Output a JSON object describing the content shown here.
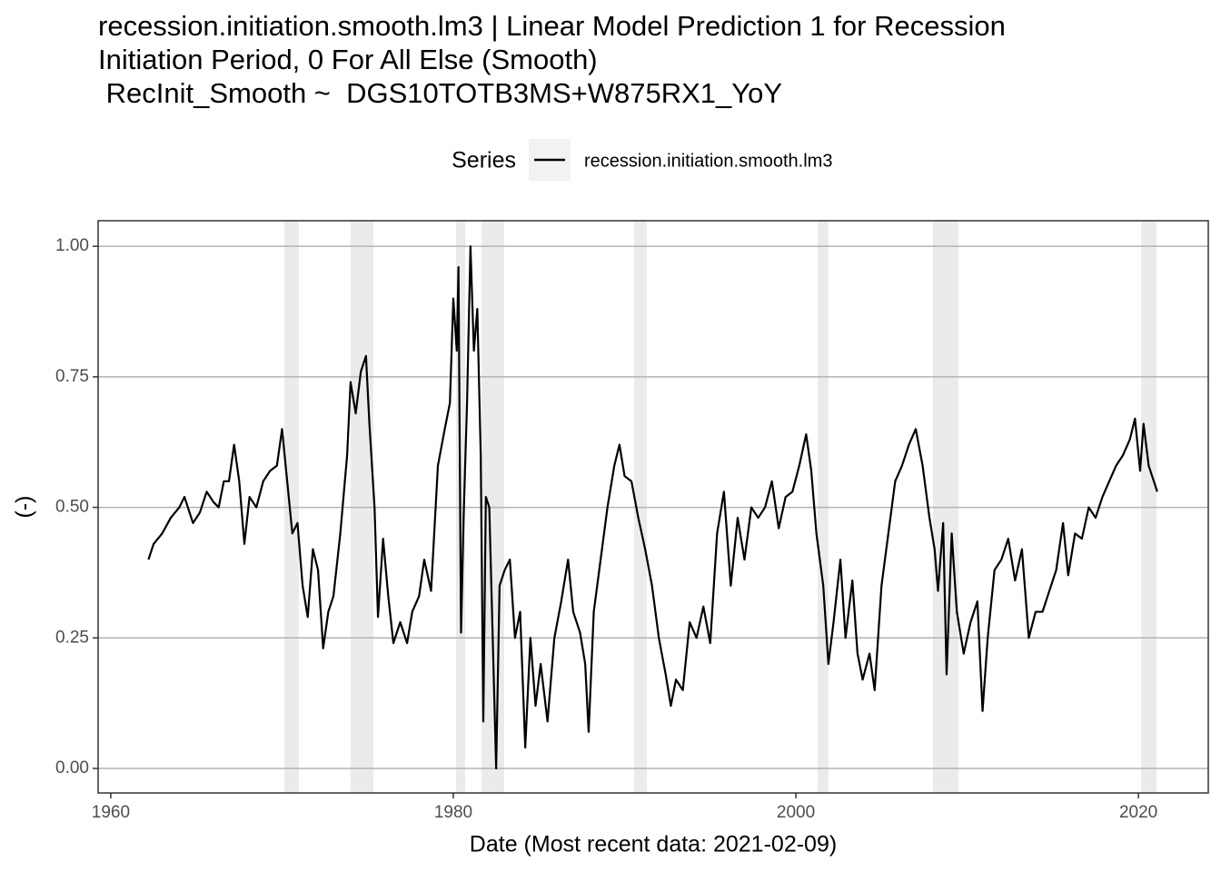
{
  "chart_data": {
    "type": "line",
    "title": "recession.initiation.smooth.lm3 | Linear Model Prediction 1 for Recession Initiation Period, 0 For All Else (Smooth)",
    "subtitle": " RecInit_Smooth ~  DGS10TOTB3MS+W875RX1_YoY",
    "legend_title": "Series",
    "legend_position": "top",
    "x_label": "Date (Most recent data: 2021-02-09)",
    "y_label": "(-)",
    "xlim": [
      1959.26,
      2024.08
    ],
    "xticks": [
      1960,
      1980,
      2000,
      2020
    ],
    "ylim": [
      -0.047,
      1.049
    ],
    "yticks": [
      {
        "value": 0,
        "label": "0.00"
      },
      0.25,
      {
        "value": 0.5,
        "label": "0.50"
      },
      0.75,
      {
        "value": 1,
        "label": "1.00"
      }
    ],
    "grid": true,
    "shade_color": "#ebebeb",
    "shaded_periods": [
      [
        1970.13,
        1970.98
      ],
      [
        1974.0,
        1975.33
      ],
      [
        1980.16,
        1980.69
      ],
      [
        1981.64,
        1982.97
      ],
      [
        1990.56,
        1991.3
      ],
      [
        2001.27,
        2001.9
      ],
      [
        2008.0,
        2009.5
      ],
      [
        2020.16,
        2021.06
      ]
    ],
    "series": [
      {
        "name": "recession.initiation.smooth.lm3",
        "color": "#000000",
        "x": [
          1962.2,
          1962.5,
          1963,
          1963.5,
          1964,
          1964.3,
          1964.8,
          1965.2,
          1965.6,
          1966,
          1966.3,
          1966.6,
          1966.9,
          1967.2,
          1967.5,
          1967.8,
          1968.1,
          1968.5,
          1968.9,
          1969.3,
          1969.7,
          1970.0,
          1970.3,
          1970.6,
          1970.9,
          1971.2,
          1971.5,
          1971.8,
          1972.1,
          1972.4,
          1972.7,
          1973.0,
          1973.4,
          1973.8,
          1974.0,
          1974.3,
          1974.6,
          1974.9,
          1975.1,
          1975.4,
          1975.6,
          1975.9,
          1976.2,
          1976.5,
          1976.9,
          1977.3,
          1977.6,
          1978,
          1978.3,
          1978.7,
          1979.1,
          1979.5,
          1979.8,
          1980.0,
          1980.2,
          1980.3,
          1980.45,
          1980.6,
          1980.8,
          1981.0,
          1981.2,
          1981.4,
          1981.6,
          1981.75,
          1981.9,
          1982.1,
          1982.3,
          1982.5,
          1982.7,
          1983,
          1983.3,
          1983.6,
          1983.9,
          1984.2,
          1984.5,
          1984.8,
          1985.1,
          1985.5,
          1985.9,
          1986.3,
          1986.7,
          1987,
          1987.4,
          1987.7,
          1987.9,
          1988.2,
          1988.6,
          1989,
          1989.4,
          1989.7,
          1990,
          1990.4,
          1990.8,
          1991.2,
          1991.6,
          1992,
          1992.4,
          1992.7,
          1993,
          1993.4,
          1993.8,
          1994.2,
          1994.6,
          1995,
          1995.4,
          1995.8,
          1996.2,
          1996.6,
          1997,
          1997.4,
          1997.8,
          1998.2,
          1998.6,
          1999,
          1999.4,
          1999.8,
          2000.2,
          2000.6,
          2000.9,
          2001.2,
          2001.6,
          2001.9,
          2002.2,
          2002.6,
          2002.9,
          2003.3,
          2003.6,
          2003.9,
          2004.3,
          2004.6,
          2005,
          2005.4,
          2005.8,
          2006.2,
          2006.6,
          2007,
          2007.4,
          2007.8,
          2008.1,
          2008.3,
          2008.6,
          2008.8,
          2009.1,
          2009.4,
          2009.8,
          2010.2,
          2010.6,
          2010.9,
          2011.2,
          2011.6,
          2012,
          2012.4,
          2012.8,
          2013.2,
          2013.6,
          2014,
          2014.4,
          2014.8,
          2015.2,
          2015.6,
          2015.9,
          2016.3,
          2016.7,
          2017.1,
          2017.5,
          2017.9,
          2018.3,
          2018.7,
          2019.1,
          2019.5,
          2019.8,
          2020.1,
          2020.3,
          2020.6,
          2021.1
        ],
        "values": [
          0.4,
          0.43,
          0.45,
          0.48,
          0.5,
          0.52,
          0.47,
          0.49,
          0.53,
          0.51,
          0.5,
          0.55,
          0.55,
          0.62,
          0.55,
          0.43,
          0.52,
          0.5,
          0.55,
          0.57,
          0.58,
          0.65,
          0.55,
          0.45,
          0.47,
          0.35,
          0.29,
          0.42,
          0.38,
          0.23,
          0.3,
          0.33,
          0.45,
          0.6,
          0.74,
          0.68,
          0.76,
          0.79,
          0.66,
          0.5,
          0.29,
          0.44,
          0.33,
          0.24,
          0.28,
          0.24,
          0.3,
          0.33,
          0.4,
          0.34,
          0.58,
          0.65,
          0.7,
          0.9,
          0.8,
          0.96,
          0.26,
          0.48,
          0.7,
          1.0,
          0.8,
          0.88,
          0.6,
          0.09,
          0.52,
          0.5,
          0.25,
          0.0,
          0.35,
          0.38,
          0.4,
          0.25,
          0.3,
          0.04,
          0.25,
          0.12,
          0.2,
          0.09,
          0.25,
          0.32,
          0.4,
          0.3,
          0.26,
          0.2,
          0.07,
          0.3,
          0.4,
          0.5,
          0.58,
          0.62,
          0.56,
          0.55,
          0.48,
          0.42,
          0.35,
          0.25,
          0.18,
          0.12,
          0.17,
          0.15,
          0.28,
          0.25,
          0.31,
          0.24,
          0.45,
          0.53,
          0.35,
          0.48,
          0.4,
          0.5,
          0.48,
          0.5,
          0.55,
          0.46,
          0.52,
          0.53,
          0.58,
          0.64,
          0.57,
          0.45,
          0.35,
          0.2,
          0.28,
          0.4,
          0.25,
          0.36,
          0.22,
          0.17,
          0.22,
          0.15,
          0.35,
          0.45,
          0.55,
          0.58,
          0.62,
          0.65,
          0.58,
          0.48,
          0.42,
          0.34,
          0.47,
          0.18,
          0.45,
          0.3,
          0.22,
          0.28,
          0.32,
          0.11,
          0.25,
          0.38,
          0.4,
          0.44,
          0.36,
          0.42,
          0.25,
          0.3,
          0.3,
          0.34,
          0.38,
          0.47,
          0.37,
          0.45,
          0.44,
          0.5,
          0.48,
          0.52,
          0.55,
          0.58,
          0.6,
          0.63,
          0.67,
          0.57,
          0.66,
          0.58,
          0.53
        ]
      }
    ]
  }
}
